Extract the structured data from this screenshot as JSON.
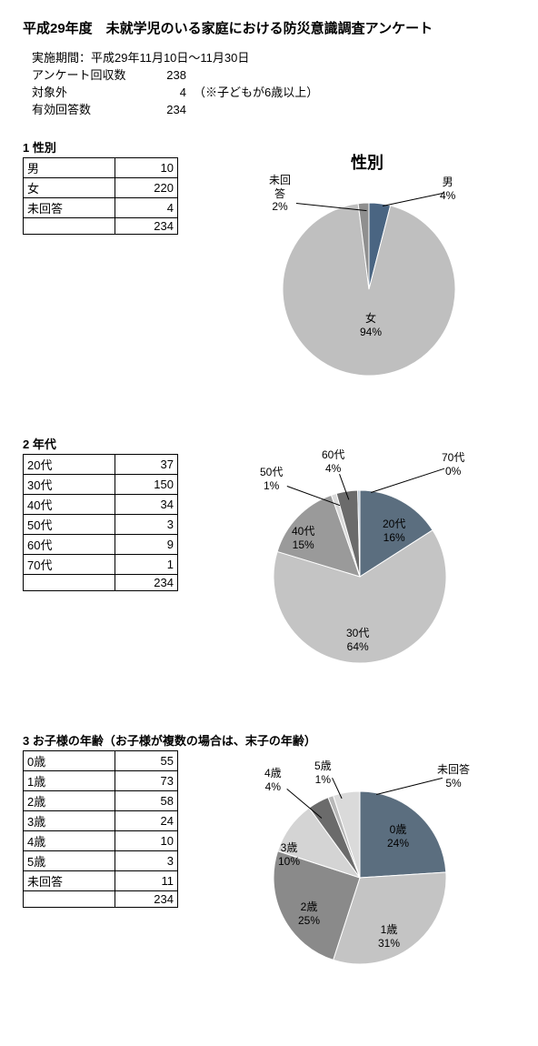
{
  "title": "平成29年度　未就学児のいる家庭における防災意識調査アンケート",
  "meta": {
    "period_lbl": "実施期間：平成29年11月10日～11月30日",
    "collected_lbl": "アンケート回収数",
    "collected_val": "238",
    "excluded_lbl": "対象外",
    "excluded_val": "4",
    "excluded_note": "（※子どもが6歳以上）",
    "valid_lbl": "有効回答数",
    "valid_val": "234"
  },
  "s1": {
    "head": "1 性別",
    "rows": [
      [
        "男",
        "10"
      ],
      [
        "女",
        "220"
      ],
      [
        "未回答",
        "4"
      ],
      [
        "",
        "234"
      ]
    ],
    "chart_title": "性別",
    "slices": [
      {
        "label": "男",
        "pct": "4%",
        "value": 4,
        "color": "#4a6582"
      },
      {
        "label": "女",
        "pct": "94%",
        "value": 94,
        "color": "#bfbfbf"
      },
      {
        "label": "未回答",
        "pct": "2%",
        "value": 2,
        "color": "#8f8f8f"
      }
    ]
  },
  "s2": {
    "head": "2 年代",
    "rows": [
      [
        "20代",
        "37"
      ],
      [
        "30代",
        "150"
      ],
      [
        "40代",
        "34"
      ],
      [
        "50代",
        "3"
      ],
      [
        "60代",
        "9"
      ],
      [
        "70代",
        "1"
      ],
      [
        "",
        "234"
      ]
    ],
    "slices": [
      {
        "label": "20代",
        "pct": "16%",
        "value": 16,
        "color": "#5b6e7f"
      },
      {
        "label": "30代",
        "pct": "64%",
        "value": 64,
        "color": "#c4c4c4"
      },
      {
        "label": "40代",
        "pct": "15%",
        "value": 15,
        "color": "#9a9a9a"
      },
      {
        "label": "50代",
        "pct": "1%",
        "value": 1,
        "color": "#d9d9d9"
      },
      {
        "label": "60代",
        "pct": "4%",
        "value": 4,
        "color": "#6b6b6b"
      },
      {
        "label": "70代",
        "pct": "0%",
        "value": 0.4,
        "color": "#a8b9c8"
      }
    ]
  },
  "s3": {
    "head": "3 お子様の年齢（お子様が複数の場合は、末子の年齢）",
    "rows": [
      [
        "0歳",
        "55"
      ],
      [
        "1歳",
        "73"
      ],
      [
        "2歳",
        "58"
      ],
      [
        "3歳",
        "24"
      ],
      [
        "4歳",
        "10"
      ],
      [
        "5歳",
        "3"
      ],
      [
        "未回答",
        "11"
      ],
      [
        "",
        "234"
      ]
    ],
    "slices": [
      {
        "label": "0歳",
        "pct": "24%",
        "value": 24,
        "color": "#5b6e7f"
      },
      {
        "label": "1歳",
        "pct": "31%",
        "value": 31,
        "color": "#c4c4c4"
      },
      {
        "label": "2歳",
        "pct": "25%",
        "value": 25,
        "color": "#8a8a8a"
      },
      {
        "label": "3歳",
        "pct": "10%",
        "value": 10,
        "color": "#d4d4d4"
      },
      {
        "label": "4歳",
        "pct": "4%",
        "value": 4,
        "color": "#6b6b6b"
      },
      {
        "label": "5歳",
        "pct": "1%",
        "value": 1,
        "color": "#b8b8b8"
      },
      {
        "label": "未回答",
        "pct": "5%",
        "value": 5,
        "color": "#dadada"
      }
    ]
  }
}
